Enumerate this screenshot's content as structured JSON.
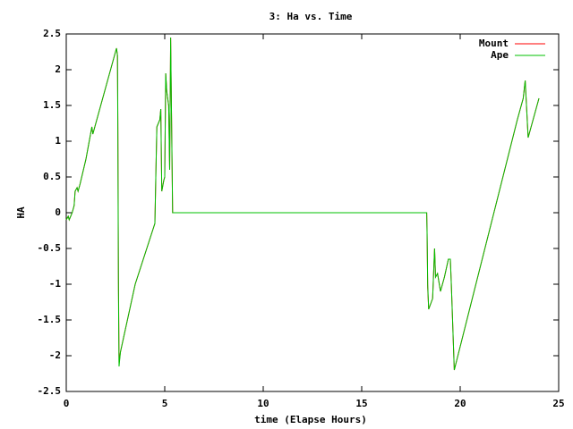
{
  "chart_data": {
    "type": "line",
    "title": "3: Ha vs. Time",
    "xlabel": "time (Elapse Hours)",
    "ylabel": "HA",
    "x": [
      0,
      0.1,
      0.15,
      0.3,
      0.4,
      0.45,
      0.55,
      0.6,
      0.7,
      1.0,
      1.2,
      1.3,
      1.35,
      1.45,
      1.6,
      2.0,
      2.55,
      2.6,
      2.62,
      2.65,
      2.68,
      2.75,
      3.5,
      4.5,
      4.55,
      4.6,
      4.75,
      4.8,
      4.85,
      4.95,
      5.0,
      5.05,
      5.1,
      5.2,
      5.25,
      5.3,
      5.4,
      18.3,
      18.32,
      18.35,
      18.4,
      18.6,
      18.7,
      18.75,
      18.85,
      19.0,
      19.2,
      19.4,
      19.5,
      19.55,
      19.7,
      22.9,
      23.2,
      23.3,
      23.45,
      23.7,
      24.0
    ],
    "series": [
      {
        "name": "Mount",
        "color": "#ff0000",
        "values": [
          -0.1,
          -0.05,
          -0.1,
          0.0,
          0.1,
          0.3,
          0.35,
          0.3,
          0.4,
          0.75,
          1.05,
          1.2,
          1.1,
          1.2,
          1.35,
          1.75,
          2.3,
          2.2,
          1.25,
          -0.9,
          -2.1,
          -1.95,
          -1.0,
          -0.15,
          0.55,
          1.2,
          1.3,
          1.45,
          0.3,
          0.45,
          0.5,
          1.95,
          1.7,
          1.5,
          0.6,
          2.45,
          0,
          0,
          -0.3,
          -1.05,
          -1.35,
          -1.2,
          -0.5,
          -0.9,
          -0.85,
          -1.1,
          -0.9,
          -0.65,
          -0.65,
          -1.0,
          -2.2,
          1.3,
          1.6,
          1.85,
          1.05,
          1.3,
          1.6
        ]
      },
      {
        "name": "Ape",
        "color": "#00c000",
        "values": [
          -0.1,
          -0.05,
          -0.1,
          0.0,
          0.1,
          0.3,
          0.35,
          0.3,
          0.4,
          0.75,
          1.05,
          1.2,
          1.1,
          1.2,
          1.35,
          1.75,
          2.3,
          2.2,
          1.1,
          -1.1,
          -2.15,
          -1.95,
          -1.0,
          -0.15,
          0.55,
          1.2,
          1.3,
          1.45,
          0.3,
          0.45,
          0.5,
          1.95,
          1.7,
          1.5,
          0.6,
          2.45,
          0,
          0,
          -0.3,
          -1.0,
          -1.35,
          -1.2,
          -0.5,
          -0.9,
          -0.85,
          -1.1,
          -0.9,
          -0.65,
          -0.65,
          -1.0,
          -2.2,
          1.3,
          1.6,
          1.85,
          1.05,
          1.3,
          1.6
        ]
      }
    ],
    "xlim": [
      0,
      25
    ],
    "xticks": [
      0,
      5,
      10,
      15,
      20,
      25
    ],
    "ylim": [
      -2.5,
      2.5
    ],
    "yticks": [
      -2.5,
      -2,
      -1.5,
      -1,
      -0.5,
      0,
      0.5,
      1,
      1.5,
      2,
      2.5
    ],
    "legend": "top-right"
  }
}
